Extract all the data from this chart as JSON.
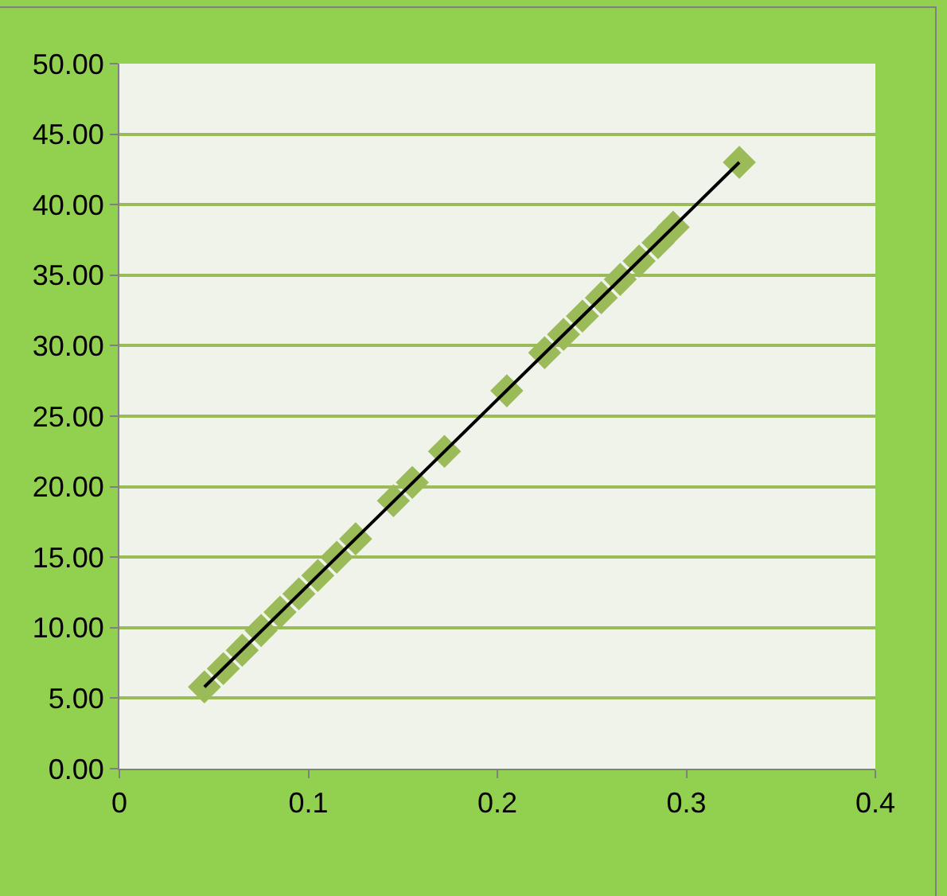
{
  "chart_data": {
    "type": "scatter",
    "marker": "diamond",
    "grid": "y",
    "legend": false,
    "xlim": [
      0,
      0.4
    ],
    "xticks": [
      0,
      0.1,
      0.2,
      0.3,
      0.4
    ],
    "ylim": [
      0,
      50
    ],
    "yticks": [
      {
        "value": 0,
        "label": "0.00"
      },
      {
        "value": 5,
        "label": "5.00"
      },
      {
        "value": 10,
        "label": "10.00"
      },
      {
        "value": 15,
        "label": "15.00"
      },
      {
        "value": 20,
        "label": "20.00"
      },
      {
        "value": 25,
        "label": "25.00"
      },
      {
        "value": 30,
        "label": "30.00"
      },
      {
        "value": 35,
        "label": "35.00"
      },
      {
        "value": 40,
        "label": "40.00"
      },
      {
        "value": 45,
        "label": "45.00"
      },
      {
        "value": 50,
        "label": "50.00"
      }
    ],
    "series": [
      {
        "color": "#9bbb59",
        "x": [
          0.045,
          0.055,
          0.065,
          0.075,
          0.085,
          0.095,
          0.105,
          0.115,
          0.125,
          0.145,
          0.155,
          0.172,
          0.205,
          0.225,
          0.235,
          0.245,
          0.255,
          0.265,
          0.275,
          0.285,
          0.293,
          0.328
        ],
        "values": [
          5.8,
          7.1,
          8.4,
          9.8,
          11.1,
          12.4,
          13.7,
          15.0,
          16.3,
          19.0,
          20.3,
          22.5,
          26.8,
          29.5,
          30.8,
          32.1,
          33.4,
          34.7,
          36.0,
          37.3,
          38.4,
          43.0
        ]
      },
      {
        "type": "line",
        "marker": "none",
        "color": "#000000",
        "x": [
          0.045,
          0.328
        ],
        "values": [
          5.8,
          43.0
        ]
      }
    ]
  }
}
